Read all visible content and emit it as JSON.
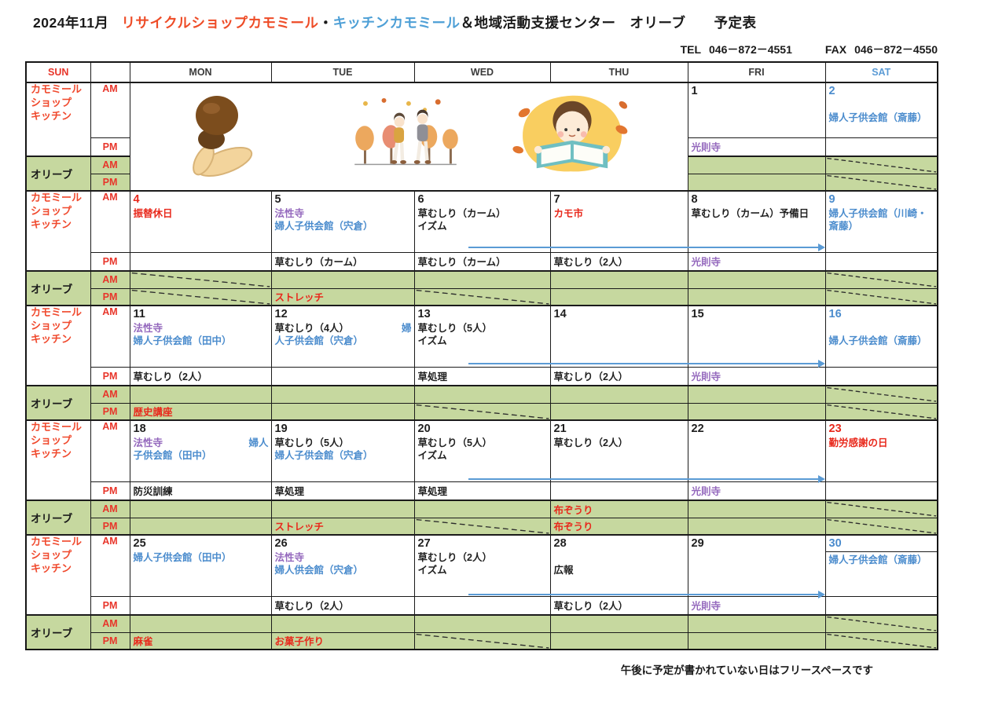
{
  "title": {
    "year_month": "2024年11月",
    "shop": "リサイクルショップカモミール",
    "separator": "・",
    "kitchen": "キッチンカモミール",
    "rest": "＆地域活動支援センター　オリーブ　　予定表"
  },
  "contact": {
    "tel_label": "TEL",
    "tel": "046－872－4551",
    "fax_label": "FAX",
    "fax": "046－872－4550"
  },
  "footer_note": "午後に予定が書かれていない日はフリースペースです",
  "header": {
    "days": [
      "SUN",
      "",
      "MON",
      "TUE",
      "WED",
      "THU",
      "FRI",
      "SAT"
    ]
  },
  "labels": {
    "shop_lines": [
      "カモミール",
      "ショップ",
      "キッチン"
    ],
    "olive": "オリーブ",
    "am": "AM",
    "pm": "PM"
  },
  "colors": {
    "black": "#1f1f1f",
    "red": "#e8291c",
    "blue": "#4b8ccd",
    "purple": "#9468bd",
    "sun": "#e8352a",
    "sat": "#5b9bd5",
    "green": "#c6d89f",
    "arrow": "#5b9bd5",
    "title_orange": "#ee4c27",
    "title_blue": "#4d9fd6",
    "shop_label": "#f0492d"
  },
  "illustrations": [
    "mushrooms-illustration",
    "autumn-walk-illustration",
    "child-reading-illustration"
  ],
  "weeks": [
    {
      "illustration": true,
      "arrow": false,
      "days": [
        {
          "num": "1",
          "numc": "black",
          "am": [],
          "pm": [
            {
              "t": "光則寺",
              "c": "purple"
            }
          ],
          "oam": {},
          "opm": {}
        },
        {
          "num": "2",
          "numc": "blue",
          "am": [
            [],
            [
              {
                "t": "婦人子供会館（斎藤）",
                "c": "blue"
              }
            ]
          ],
          "pm": [],
          "oam": {
            "x": true
          },
          "opm": {
            "x": true
          }
        }
      ]
    },
    {
      "illustration": false,
      "arrow": true,
      "days": [
        {
          "num": "4",
          "numc": "red",
          "am": [
            [
              {
                "t": "振替休日",
                "c": "red"
              }
            ]
          ],
          "pm": [],
          "oam": {
            "x": true
          },
          "opm": {
            "x": true
          }
        },
        {
          "num": "5",
          "numc": "black",
          "am": [
            [
              {
                "t": "法性寺",
                "c": "purple"
              }
            ],
            [
              {
                "t": "婦人子供会館（宍倉）",
                "c": "blue"
              }
            ]
          ],
          "pm": [
            {
              "t": "草むしり（カーム）",
              "c": "black"
            }
          ],
          "oam": {},
          "opm": {
            "t": "ストレッチ",
            "c": "red"
          }
        },
        {
          "num": "6",
          "numc": "black",
          "am": [
            [
              {
                "t": "草むしり（カーム）",
                "c": "black"
              }
            ],
            [
              {
                "t": "イズム",
                "c": "black"
              }
            ]
          ],
          "pm": [
            {
              "t": "草むしり（カーム）",
              "c": "black"
            }
          ],
          "oam": {},
          "opm": {
            "x": true
          }
        },
        {
          "num": "7",
          "numc": "black",
          "am": [
            [
              {
                "t": "カモ市",
                "c": "red"
              }
            ]
          ],
          "pm": [
            {
              "t": "草むしり（2人）",
              "c": "black"
            }
          ],
          "oam": {},
          "opm": {}
        },
        {
          "num": "8",
          "numc": "black",
          "am": [
            [
              {
                "t": "草むしり（カーム）予備日",
                "c": "black"
              }
            ]
          ],
          "pm": [
            {
              "t": "光則寺",
              "c": "purple"
            }
          ],
          "oam": {},
          "opm": {}
        },
        {
          "num": "9",
          "numc": "blue",
          "am": [
            [
              {
                "t": "婦人子供会館（川崎・斎藤）",
                "c": "blue"
              }
            ]
          ],
          "pm": [],
          "oam": {
            "x": true
          },
          "opm": {
            "x": true
          }
        }
      ]
    },
    {
      "illustration": false,
      "arrow": true,
      "days": [
        {
          "num": "11",
          "numc": "black",
          "am": [
            [
              {
                "t": "法性寺",
                "c": "purple"
              }
            ],
            [
              {
                "t": "婦人子供会館（田中）",
                "c": "blue"
              }
            ]
          ],
          "pm": [
            {
              "t": "草むしり（2人）",
              "c": "black"
            }
          ],
          "oam": {},
          "opm": {
            "t": "歴史講座",
            "c": "red"
          }
        },
        {
          "num": "12",
          "numc": "black",
          "am": [
            [
              {
                "t": "草むしり（4人）",
                "c": "black"
              },
              {
                "t": "婦",
                "c": "blue",
                "right": true
              }
            ],
            [
              {
                "t": "人子供会館（宍倉）",
                "c": "blue"
              }
            ]
          ],
          "pm": [],
          "oam": {},
          "opm": {}
        },
        {
          "num": "13",
          "numc": "black",
          "am": [
            [
              {
                "t": "草むしり（5人）",
                "c": "black"
              }
            ],
            [
              {
                "t": "イズム",
                "c": "black"
              }
            ]
          ],
          "pm": [
            {
              "t": "草処理",
              "c": "black"
            }
          ],
          "oam": {},
          "opm": {
            "x": true
          }
        },
        {
          "num": "14",
          "numc": "black",
          "am": [],
          "pm": [
            {
              "t": "草むしり（2人）",
              "c": "black"
            }
          ],
          "oam": {},
          "opm": {}
        },
        {
          "num": "15",
          "numc": "black",
          "am": [],
          "pm": [
            {
              "t": "光則寺",
              "c": "purple"
            }
          ],
          "oam": {},
          "opm": {}
        },
        {
          "num": "16",
          "numc": "blue",
          "am": [
            [],
            [
              {
                "t": "婦人子供会館（斎藤）",
                "c": "blue"
              }
            ]
          ],
          "pm": [],
          "oam": {
            "x": true
          },
          "opm": {
            "x": true
          }
        }
      ]
    },
    {
      "illustration": false,
      "arrow": true,
      "days": [
        {
          "num": "18",
          "numc": "black",
          "am": [
            [
              {
                "t": "法性寺",
                "c": "purple"
              },
              {
                "t": "婦人",
                "c": "blue",
                "right": true
              }
            ],
            [
              {
                "t": "子供会館（田中）",
                "c": "blue"
              }
            ]
          ],
          "pm": [
            {
              "t": "防災訓練",
              "c": "black"
            }
          ],
          "oam": {},
          "opm": {}
        },
        {
          "num": "19",
          "numc": "black",
          "am": [
            [
              {
                "t": "草むしり（5人）",
                "c": "black"
              }
            ],
            [
              {
                "t": "婦人子供会館（宍倉）",
                "c": "blue"
              }
            ]
          ],
          "pm": [
            {
              "t": "草処理",
              "c": "black"
            }
          ],
          "oam": {},
          "opm": {
            "t": "ストレッチ",
            "c": "red"
          }
        },
        {
          "num": "20",
          "numc": "black",
          "am": [
            [
              {
                "t": "草むしり（5人）",
                "c": "black"
              }
            ],
            [
              {
                "t": "イズム",
                "c": "black"
              }
            ]
          ],
          "pm": [
            {
              "t": "草処理",
              "c": "black"
            }
          ],
          "oam": {},
          "opm": {
            "x": true
          }
        },
        {
          "num": "21",
          "numc": "black",
          "am": [
            [
              {
                "t": "草むしり（2人）",
                "c": "black"
              }
            ]
          ],
          "pm": [],
          "oam": {
            "t": "布ぞうり",
            "c": "red"
          },
          "opm": {
            "t": "布ぞうり",
            "c": "red"
          }
        },
        {
          "num": "22",
          "numc": "black",
          "am": [],
          "pm": [
            {
              "t": "光則寺",
              "c": "purple"
            }
          ],
          "oam": {},
          "opm": {}
        },
        {
          "num": "23",
          "numc": "red",
          "am": [
            [
              {
                "t": "勤労感謝の日",
                "c": "red"
              }
            ]
          ],
          "pm": [],
          "oam": {
            "x": true
          },
          "opm": {
            "x": true
          }
        }
      ]
    },
    {
      "illustration": false,
      "arrow": true,
      "days": [
        {
          "num": "25",
          "numc": "black",
          "am": [
            [
              {
                "t": "婦人子供会館（田中）",
                "c": "blue"
              }
            ]
          ],
          "pm": [],
          "oam": {},
          "opm": {
            "t": "麻雀",
            "c": "red"
          }
        },
        {
          "num": "26",
          "numc": "black",
          "am": [
            [
              {
                "t": "法性寺",
                "c": "purple"
              }
            ],
            [
              {
                "t": "婦人供会館（宍倉）",
                "c": "blue"
              }
            ]
          ],
          "pm": [
            {
              "t": "草むしり（2人）",
              "c": "black"
            }
          ],
          "oam": {},
          "opm": {
            "t": "お菓子作り",
            "c": "red"
          }
        },
        {
          "num": "27",
          "numc": "black",
          "am": [
            [
              {
                "t": "草むしり（2人）",
                "c": "black"
              }
            ],
            [
              {
                "t": "イズム",
                "c": "black"
              }
            ]
          ],
          "pm": [],
          "oam": {},
          "opm": {
            "x": true
          }
        },
        {
          "num": "28",
          "numc": "black",
          "am": [
            [],
            [
              {
                "t": "広報",
                "c": "black"
              }
            ]
          ],
          "pm": [
            {
              "t": "草むしり（2人）",
              "c": "black"
            }
          ],
          "oam": {},
          "opm": {}
        },
        {
          "num": "29",
          "numc": "black",
          "am": [],
          "pm": [
            {
              "t": "光則寺",
              "c": "purple"
            }
          ],
          "oam": {},
          "opm": {}
        },
        {
          "num": "30",
          "numc": "blue",
          "divider": true,
          "am": [
            [
              {
                "t": "婦人子供会館（斎藤）",
                "c": "blue"
              }
            ]
          ],
          "pm": [],
          "oam": {
            "x": true
          },
          "opm": {
            "x": true
          }
        }
      ]
    }
  ]
}
